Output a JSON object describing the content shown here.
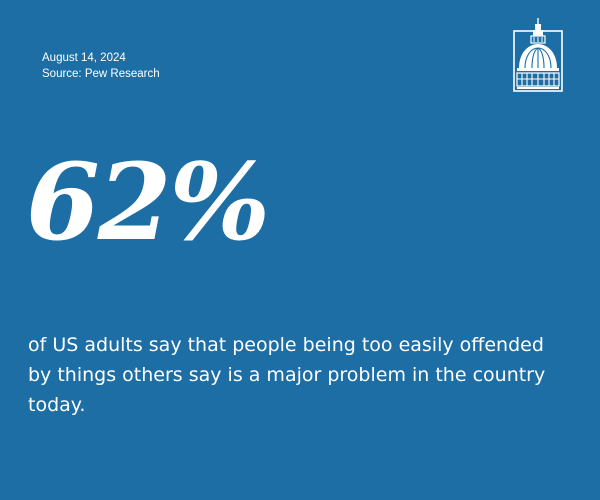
{
  "meta": {
    "date": "August 14, 2024",
    "source": "Source: Pew Research"
  },
  "logo": {
    "icon": "capitol-dome-icon"
  },
  "stat": {
    "value": "62%",
    "description": "of US adults say that people being too easily offended by things others say is a major problem in the country today."
  },
  "colors": {
    "background": "#1c6ea4",
    "text": "#ffffff"
  }
}
